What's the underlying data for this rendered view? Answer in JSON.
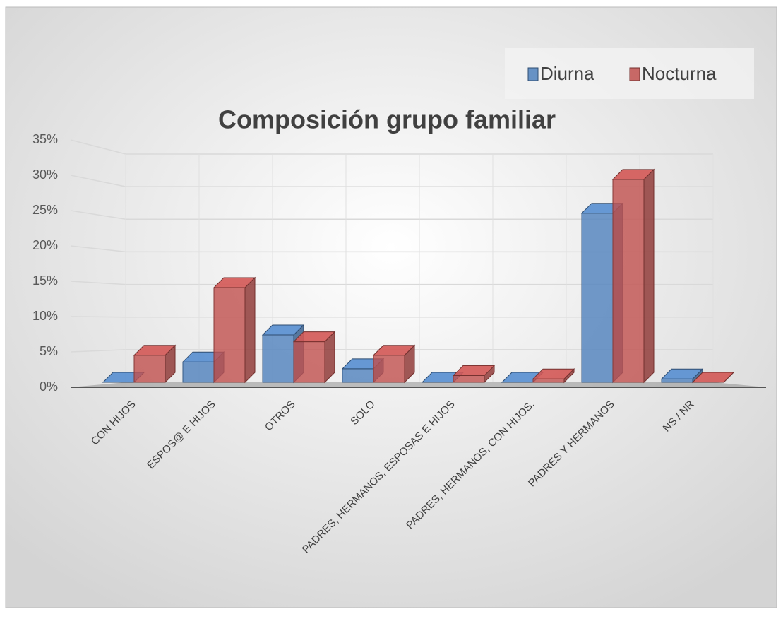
{
  "chart_data": {
    "type": "bar3d",
    "title": "Composición grupo familiar",
    "categories": [
      "CON HIJOS",
      "ESPOS@ E HIJOS",
      "OTROS",
      "SOLO",
      "PADRES, HERMANOS, ESPOSAS E HIJOS",
      "PADRES, HERMANOS, CON HIJOS.",
      "PADRES Y HERMANOS",
      "NS / NR"
    ],
    "series": [
      {
        "name": "Diurna",
        "color": "#4f81bd",
        "values": [
          0,
          3,
          7,
          2,
          0,
          0,
          25,
          0.5
        ]
      },
      {
        "name": "Nocturna",
        "color": "#c0504d",
        "values": [
          4,
          14,
          6,
          4,
          1,
          0.5,
          30,
          0
        ]
      }
    ],
    "ylim": [
      0,
      35
    ],
    "yticks": [
      {
        "value": 0,
        "label": "0%"
      },
      {
        "value": 5,
        "label": "5%"
      },
      {
        "value": 10,
        "label": "10%"
      },
      {
        "value": 15,
        "label": "15%"
      },
      {
        "value": 20,
        "label": "20%"
      },
      {
        "value": 25,
        "label": "25%"
      },
      {
        "value": 30,
        "label": "30%"
      },
      {
        "value": 35,
        "label": "35%"
      }
    ],
    "grid": true,
    "legend": "top-right"
  }
}
